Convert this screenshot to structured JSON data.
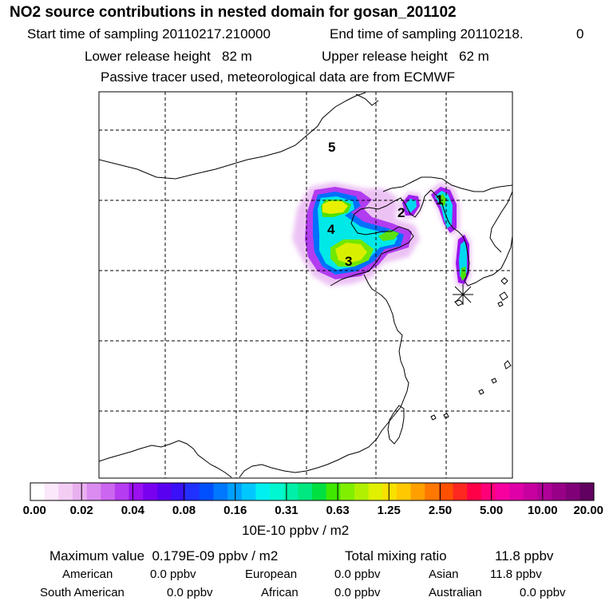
{
  "header": {
    "title": "NO2 source contributions in nested domain for gosan_201102",
    "start_label": "Start time of sampling 20110217.210000",
    "end_label": "End time of sampling 20110218.",
    "end_suffix": "0",
    "lower_label": "Lower release height   82 m",
    "upper_label": "Upper release height   62 m",
    "note": "Passive tracer used, meteorological data are from ECMWF"
  },
  "chart_data": {
    "type": "heatmap",
    "title": "NO2 source contributions in nested domain for gosan_201102",
    "region_labels": [
      "1",
      "2",
      "3",
      "4",
      "5"
    ],
    "grid": true,
    "receptor_marker": "asterisk",
    "colorbar": {
      "ticks": [
        "0.00",
        "0.02",
        "0.04",
        "0.08",
        "0.16",
        "0.31",
        "0.63",
        "1.25",
        "2.50",
        "5.00",
        "10.00",
        "20.00"
      ],
      "unit": "10E-10 ppbv / m2",
      "colors": [
        "#ffffff",
        "#fbe8fb",
        "#f4cdf4",
        "#e9b0f0",
        "#db8cf0",
        "#cb66f0",
        "#b53cf0",
        "#9a10f0",
        "#7a00f0",
        "#5a00f0",
        "#3a10f8",
        "#2030ff",
        "#0050ff",
        "#0078ff",
        "#00a0ff",
        "#00c8ff",
        "#00f0f0",
        "#00f8d0",
        "#00f0a8",
        "#00e880",
        "#00e040",
        "#40e800",
        "#80f000",
        "#b0f000",
        "#e0f000",
        "#f8e000",
        "#ffc800",
        "#ffa000",
        "#ff7800",
        "#ff5000",
        "#ff2820",
        "#ff0048",
        "#ff0078",
        "#f800a0",
        "#e000a8",
        "#c800a0",
        "#b00098",
        "#980088",
        "#800078",
        "#600060"
      ]
    }
  },
  "footer": {
    "max_label": "Maximum value  0.179E-09 ppbv / m2",
    "total_label": "Total mixing ratio",
    "total_value": "11.8 ppbv",
    "american_label": "American",
    "american_value": "0.0 ppbv",
    "european_label": "European",
    "european_value": "0.0 ppbv",
    "asian_label": "Asian",
    "asian_value": "11.8 ppbv",
    "south_american_label": "South American",
    "south_american_value": "0.0 ppbv",
    "african_label": "African",
    "african_value": "0.0 ppbv",
    "australian_label": "Australian",
    "australian_value": "0.0 ppbv"
  }
}
